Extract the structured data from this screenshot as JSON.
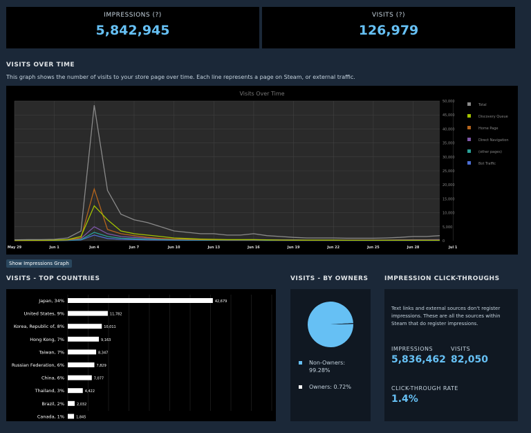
{
  "summary": {
    "impressions_label": "IMPRESSIONS (?)",
    "impressions_value": "5,842,945",
    "visits_label": "VISITS (?)",
    "visits_value": "126,979"
  },
  "visits_over_time": {
    "section_title": "VISITS OVER TIME",
    "description": "This graph shows the number of visits to your store page over time. Each line represents a page on Steam, or external traffic.",
    "button_label": "Show Impressions Graph"
  },
  "countries_section": {
    "title": "VISITS - TOP COUNTRIES"
  },
  "owners_section": {
    "title": "VISITS - BY OWNERS"
  },
  "clickthrough": {
    "title": "IMPRESSION CLICK-THROUGHS",
    "note": "Text links and external sources don't register impressions. These are all the sources within Steam that do register impressions.",
    "impressions_label": "IMPRESSIONS",
    "impressions_value": "5,836,462",
    "visits_label": "VISITS",
    "visits_value": "82,050",
    "ctr_label": "CLICK-THROUGH RATE",
    "ctr_value": "1.4%"
  },
  "colors": {
    "accent": "#66c0f4",
    "background": "#1b2838",
    "panel": "#000000"
  },
  "chart_data": [
    {
      "type": "line",
      "title": "Visits Over Time",
      "x_tick_labels": [
        "May 29",
        "Jun 1",
        "Jun 4",
        "Jun 7",
        "Jun 10",
        "Jun 13",
        "Jun 16",
        "Jun 19",
        "Jun 22",
        "Jun 25",
        "Jun 28",
        "Jul 1"
      ],
      "ylim": [
        0,
        50000
      ],
      "y_tick_labels": [
        "0",
        "5,000",
        "10,000",
        "15,000",
        "20,000",
        "25,000",
        "30,000",
        "35,000",
        "40,000",
        "45,000",
        "50,000"
      ],
      "legend_position": "right",
      "grid": true,
      "x": [
        "May 29",
        "May 30",
        "May 31",
        "Jun 1",
        "Jun 2",
        "Jun 3",
        "Jun 4",
        "Jun 5",
        "Jun 6",
        "Jun 7",
        "Jun 8",
        "Jun 9",
        "Jun 10",
        "Jun 11",
        "Jun 12",
        "Jun 13",
        "Jun 14",
        "Jun 15",
        "Jun 16",
        "Jun 17",
        "Jun 18",
        "Jun 19",
        "Jun 20",
        "Jun 21",
        "Jun 22",
        "Jun 23",
        "Jun 24",
        "Jun 25",
        "Jun 26",
        "Jun 27",
        "Jun 28",
        "Jun 29",
        "Jun 30"
      ],
      "series": [
        {
          "name": "Total",
          "color": "#8a8a8a",
          "values": [
            300,
            400,
            400,
            500,
            1000,
            3500,
            48500,
            18000,
            9500,
            7500,
            6500,
            5000,
            3500,
            3000,
            2500,
            2500,
            2000,
            2000,
            2500,
            1800,
            1500,
            1200,
            1000,
            1000,
            1000,
            900,
            900,
            900,
            1000,
            1200,
            1500,
            1500,
            1800
          ]
        },
        {
          "name": "Discovery Queue",
          "color": "#a4c400",
          "values": [
            100,
            150,
            150,
            200,
            400,
            1500,
            12500,
            7500,
            3500,
            2500,
            2000,
            1500,
            1000,
            800,
            600,
            500,
            400,
            400,
            400,
            300,
            250,
            200,
            200,
            200,
            200,
            150,
            150,
            150,
            150,
            150,
            150,
            150,
            150
          ]
        },
        {
          "name": "Home Page",
          "color": "#b5651d",
          "values": [
            50,
            100,
            100,
            150,
            300,
            1000,
            18500,
            4000,
            2500,
            1800,
            1200,
            800,
            600,
            500,
            400,
            350,
            300,
            300,
            300,
            250,
            200,
            200,
            150,
            150,
            150,
            150,
            150,
            150,
            150,
            150,
            150,
            150,
            150
          ]
        },
        {
          "name": "Direct Navigation",
          "color": "#7e57a8",
          "values": [
            50,
            80,
            80,
            100,
            300,
            800,
            5000,
            2500,
            1500,
            1200,
            900,
            700,
            600,
            500,
            450,
            400,
            350,
            350,
            400,
            350,
            300,
            300,
            250,
            250,
            250,
            250,
            250,
            250,
            250,
            300,
            350,
            350,
            400
          ]
        },
        {
          "name": "(other pages)",
          "color": "#2aa198",
          "values": [
            30,
            50,
            50,
            60,
            150,
            400,
            3000,
            1500,
            900,
            700,
            500,
            400,
            350,
            300,
            250,
            200,
            200,
            200,
            200,
            180,
            150,
            150,
            150,
            150,
            150,
            150,
            150,
            150,
            150,
            150,
            150,
            150,
            150
          ]
        },
        {
          "name": "Bot Traffic",
          "color": "#4c6ed3",
          "values": [
            20,
            30,
            30,
            40,
            100,
            300,
            2000,
            800,
            500,
            400,
            300,
            250,
            200,
            180,
            150,
            150,
            120,
            120,
            120,
            100,
            100,
            100,
            100,
            100,
            100,
            100,
            100,
            100,
            100,
            100,
            100,
            100,
            100
          ]
        }
      ]
    },
    {
      "type": "bar",
      "orientation": "horizontal",
      "categories": [
        "Japan, 34%",
        "United States, 9%",
        "Korea, Republic of, 8%",
        "Hong Kong, 7%",
        "Taiwan, 7%",
        "Russian Federation, 6%",
        "China, 6%",
        "Thailand, 3%",
        "Brazil, 2%",
        "Canada, 1%"
      ],
      "values": [
        42679,
        11782,
        10011,
        9163,
        8347,
        7829,
        7077,
        4422,
        2032,
        1845
      ],
      "value_labels": [
        "42,679",
        "11,782",
        "10,011",
        "9,163",
        "8,347",
        "7,829",
        "7,077",
        "4,422",
        "2,032",
        "1,845"
      ],
      "xlim": [
        0,
        60000
      ],
      "grid": true
    },
    {
      "type": "pie",
      "labels": [
        "Non-Owners:",
        "Owners: 0.72%"
      ],
      "percent_labels": [
        "99.28%",
        ""
      ],
      "values": [
        99.28,
        0.72
      ],
      "colors": [
        "#66c0f4",
        "#1b2838"
      ]
    }
  ]
}
